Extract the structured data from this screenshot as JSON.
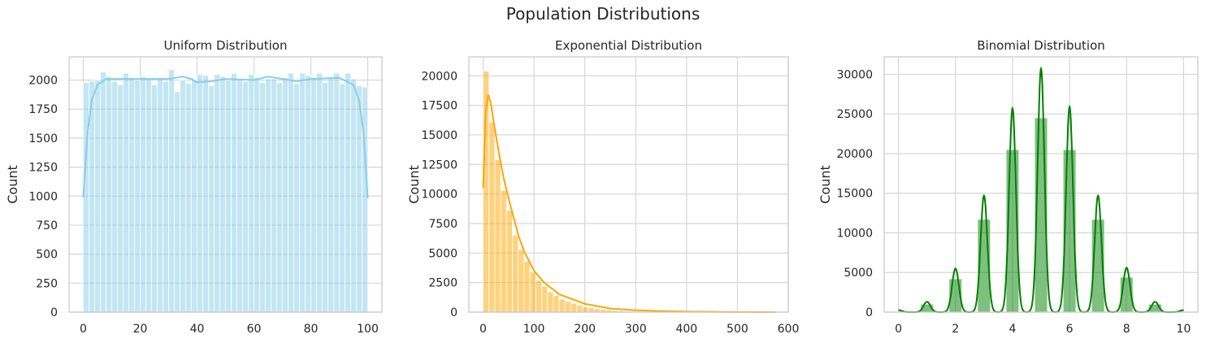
{
  "figure": {
    "title": "Population Distributions"
  },
  "chart_data": [
    {
      "type": "bar",
      "title": "Uniform Distribution",
      "xlabel": "",
      "ylabel": "Count",
      "xlim": [
        -5,
        105
      ],
      "ylim": [
        0,
        2200
      ],
      "xticks": [
        0,
        20,
        40,
        60,
        80,
        100
      ],
      "yticks": [
        0,
        250,
        500,
        750,
        1000,
        1250,
        1500,
        1750,
        2000
      ],
      "grid": true,
      "color": "#87ceeb",
      "bin_start": 0,
      "bin_width": 2,
      "values": [
        1980,
        1990,
        2000,
        2070,
        2030,
        1990,
        1960,
        2060,
        2010,
        2000,
        2030,
        2010,
        1960,
        2020,
        1990,
        2090,
        1900,
        2000,
        1970,
        2000,
        2050,
        2040,
        1950,
        2050,
        2030,
        2000,
        2060,
        2010,
        1990,
        2050,
        2020,
        1980,
        2010,
        2010,
        1980,
        2020,
        2060,
        1970,
        2060,
        2040,
        2010,
        2060,
        1980,
        2030,
        2060,
        1970,
        2060,
        2010,
        1950,
        1940
      ],
      "kde": [
        [
          0,
          990
        ],
        [
          1.5,
          1550
        ],
        [
          3,
          1830
        ],
        [
          5,
          1960
        ],
        [
          8,
          2010
        ],
        [
          20,
          2010
        ],
        [
          30,
          2010
        ],
        [
          35,
          2030
        ],
        [
          38,
          2010
        ],
        [
          40,
          1980
        ],
        [
          45,
          1990
        ],
        [
          50,
          2010
        ],
        [
          60,
          2000
        ],
        [
          65,
          2030
        ],
        [
          70,
          2010
        ],
        [
          75,
          1990
        ],
        [
          80,
          2010
        ],
        [
          90,
          2020
        ],
        [
          95,
          1960
        ],
        [
          97,
          1820
        ],
        [
          98.5,
          1550
        ],
        [
          100,
          980
        ]
      ]
    },
    {
      "type": "bar",
      "title": "Exponential Distribution",
      "xlabel": "",
      "ylabel": "Count",
      "xlim": [
        -28,
        600
      ],
      "ylim": [
        0,
        21600
      ],
      "xticks": [
        0,
        100,
        200,
        300,
        400,
        500,
        600
      ],
      "yticks": [
        0,
        2500,
        5000,
        7500,
        10000,
        12500,
        15000,
        17500,
        20000
      ],
      "grid": true,
      "color": "#ffa500",
      "bin_start": 0,
      "bin_width": 11.5,
      "values": [
        20400,
        16100,
        12900,
        10300,
        8600,
        6500,
        5300,
        4300,
        3400,
        2700,
        2200,
        1700,
        1400,
        1100,
        900,
        750,
        600,
        450,
        380,
        300,
        240,
        190,
        150,
        120,
        95,
        75,
        60,
        48,
        38,
        30,
        25,
        20,
        16,
        13,
        10,
        8,
        6,
        5,
        4,
        3,
        3,
        2,
        2,
        2,
        1,
        1,
        1,
        1,
        1,
        1
      ],
      "kde": [
        [
          0,
          10500
        ],
        [
          5,
          17000
        ],
        [
          10,
          18400
        ],
        [
          15,
          17700
        ],
        [
          20,
          16300
        ],
        [
          30,
          13700
        ],
        [
          40,
          11400
        ],
        [
          50,
          9600
        ],
        [
          60,
          8000
        ],
        [
          70,
          6400
        ],
        [
          80,
          5200
        ],
        [
          100,
          3500
        ],
        [
          120,
          2500
        ],
        [
          150,
          1500
        ],
        [
          200,
          700
        ],
        [
          250,
          300
        ],
        [
          300,
          160
        ],
        [
          350,
          80
        ],
        [
          400,
          40
        ],
        [
          500,
          10
        ],
        [
          575,
          0
        ]
      ]
    },
    {
      "type": "bar",
      "title": "Binomial Distribution",
      "xlabel": "",
      "ylabel": "Count",
      "xlim": [
        -0.5,
        10.5
      ],
      "ylim": [
        0,
        32200
      ],
      "xticks": [
        0,
        2,
        4,
        6,
        8,
        10
      ],
      "yticks": [
        0,
        5000,
        10000,
        15000,
        20000,
        25000,
        30000
      ],
      "grid": true,
      "color": "#008000",
      "bars": [
        {
          "x": 1,
          "value": 1000
        },
        {
          "x": 2,
          "value": 4200
        },
        {
          "x": 3,
          "value": 11700
        },
        {
          "x": 4,
          "value": 20500
        },
        {
          "x": 5,
          "value": 24500
        },
        {
          "x": 6,
          "value": 20500
        },
        {
          "x": 7,
          "value": 11700
        },
        {
          "x": 8,
          "value": 4400
        },
        {
          "x": 9,
          "value": 1000
        }
      ],
      "bar_width": 0.45,
      "kde_peaks": [
        {
          "x": 0,
          "y": 250
        },
        {
          "x": 1,
          "y": 1300
        },
        {
          "x": 2,
          "y": 5500
        },
        {
          "x": 3,
          "y": 14700
        },
        {
          "x": 4,
          "y": 25700
        },
        {
          "x": 5,
          "y": 30700
        },
        {
          "x": 6,
          "y": 25900
        },
        {
          "x": 7,
          "y": 14700
        },
        {
          "x": 8,
          "y": 5600
        },
        {
          "x": 9,
          "y": 1300
        },
        {
          "x": 10,
          "y": 250
        }
      ]
    }
  ]
}
